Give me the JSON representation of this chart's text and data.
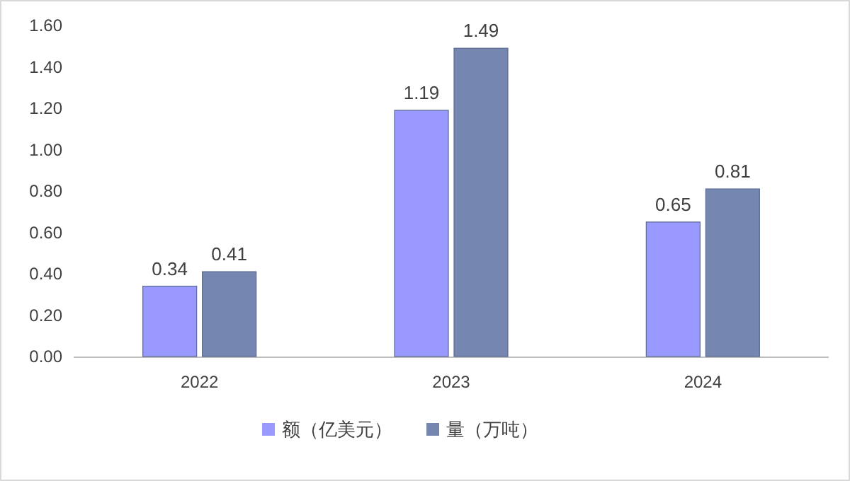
{
  "chart_data": {
    "type": "bar",
    "categories": [
      "2022",
      "2023",
      "2024"
    ],
    "series": [
      {
        "name": "额（亿美元）",
        "color": "#9999ff",
        "values": [
          0.34,
          1.19,
          0.65
        ]
      },
      {
        "name": "量（万吨）",
        "color": "#7586b0",
        "values": [
          0.41,
          1.49,
          0.81
        ]
      }
    ],
    "ylim": [
      0,
      1.6
    ],
    "yticks": [
      {
        "value": 0,
        "label": "0.00"
      },
      {
        "value": 0.2,
        "label": "0.20"
      },
      {
        "value": 0.4,
        "label": "0.40"
      },
      {
        "value": 0.6,
        "label": "0.60"
      },
      {
        "value": 0.8,
        "label": "0.80"
      },
      {
        "value": 1.0,
        "label": "1.00"
      },
      {
        "value": 1.2,
        "label": "1.20"
      },
      {
        "value": 1.4,
        "label": "1.40"
      },
      {
        "value": 1.6,
        "label": "1.60"
      }
    ],
    "data_labels": true,
    "legend": "bottom",
    "grid": false
  }
}
